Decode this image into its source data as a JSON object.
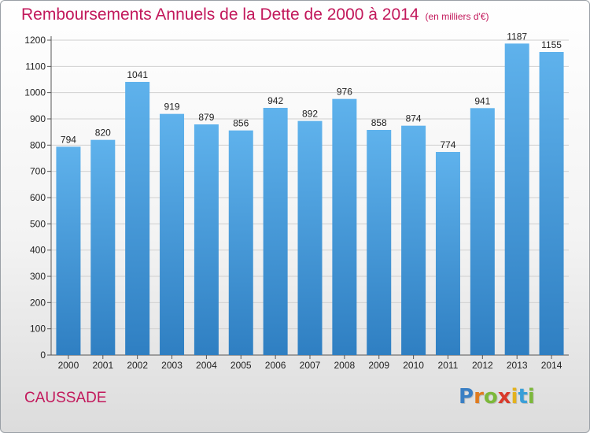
{
  "chart_data": {
    "type": "bar",
    "title": "Remboursements Annuels de la Dette de 2000 à 2014",
    "subtitle": "(en milliers d'€)",
    "categories": [
      "2000",
      "2001",
      "2002",
      "2003",
      "2004",
      "2005",
      "2006",
      "2007",
      "2008",
      "2009",
      "2010",
      "2011",
      "2012",
      "2013",
      "2014"
    ],
    "values": [
      794,
      820,
      1041,
      919,
      879,
      856,
      942,
      892,
      976,
      858,
      874,
      774,
      941,
      1187,
      1155
    ],
    "ylim": [
      0,
      1200
    ],
    "yticks": [
      0,
      100,
      200,
      300,
      400,
      500,
      600,
      700,
      800,
      900,
      1000,
      1100,
      1200
    ],
    "xlabel": "",
    "ylabel": "",
    "grid": true,
    "bar_color_top": "#5fb2ec",
    "bar_color_bottom": "#2f7fc2"
  },
  "location": "CAUSSADE",
  "brand": {
    "letters": [
      "P",
      "r",
      "o",
      "x",
      "i",
      "t",
      "i"
    ],
    "colors": [
      "#3a7fc4",
      "#e07b1f",
      "#7cb83a",
      "#d93a2b",
      "#e3b21e",
      "#3a9fd8",
      "#7cb83a"
    ]
  }
}
